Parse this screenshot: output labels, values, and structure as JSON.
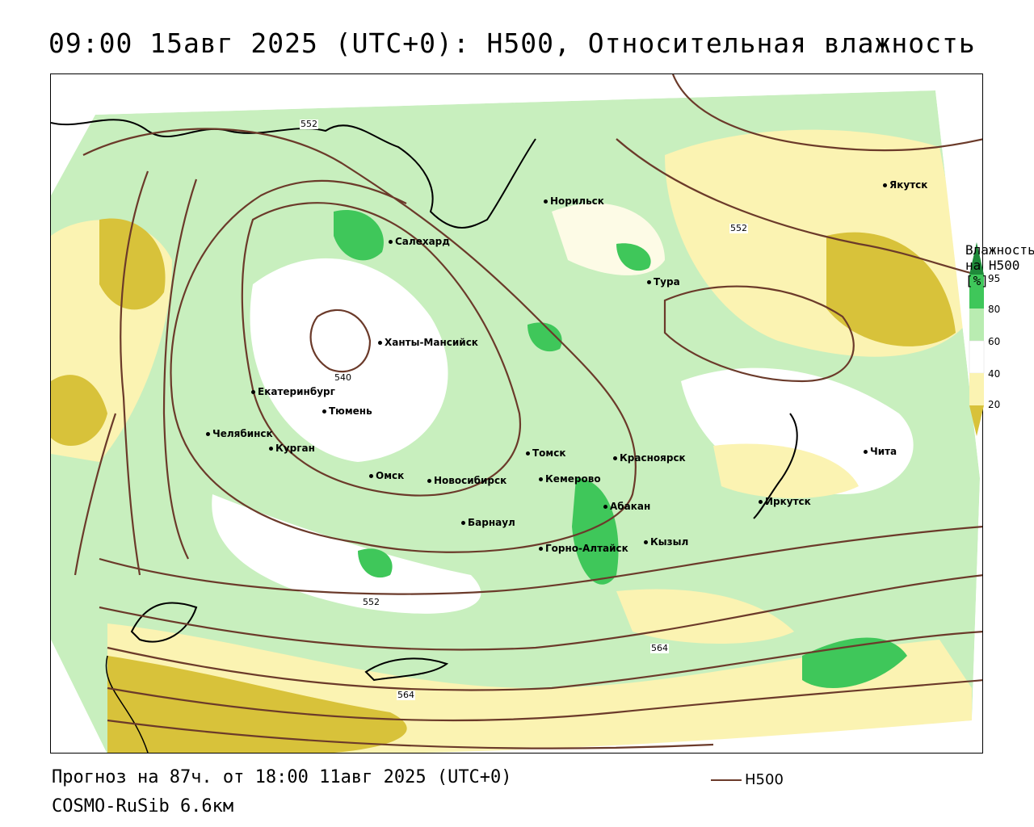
{
  "header": {
    "title": "09:00 15авг 2025 (UTC+0): H500, Относительная влажность"
  },
  "footer": {
    "forecast": "Прогноз на 87ч. от 18:00 11авг 2025 (UTC+0)",
    "model": "COSMO-RuSib 6.6км",
    "line_key": "H500"
  },
  "legend": {
    "title": "Влажность на H500 [%]",
    "ticks": [
      "95",
      "80",
      "60",
      "40",
      "20"
    ],
    "colors": {
      "very_high": "#1f8a3a",
      "high": "#3fc75a",
      "mid_high": "#b9ecb1",
      "mid": "#ffffff",
      "low": "#fbf3b2",
      "very_low": "#d8c23a"
    }
  },
  "contours": {
    "color": "#6b3a2a",
    "labels": [
      "552",
      "540",
      "552",
      "552",
      "564",
      "564"
    ]
  },
  "cities": [
    {
      "name": "Норильск"
    },
    {
      "name": "Якутск"
    },
    {
      "name": "Салехард"
    },
    {
      "name": "Тура"
    },
    {
      "name": "Ханты-Мансийск"
    },
    {
      "name": "Екатеринбург"
    },
    {
      "name": "Тюмень"
    },
    {
      "name": "Челябинск"
    },
    {
      "name": "Курган"
    },
    {
      "name": "Омск"
    },
    {
      "name": "Новосибирск"
    },
    {
      "name": "Томск"
    },
    {
      "name": "Кемерово"
    },
    {
      "name": "Красноярск"
    },
    {
      "name": "Барнаул"
    },
    {
      "name": "Абакан"
    },
    {
      "name": "Горно-Алтайск"
    },
    {
      "name": "Кызыл"
    },
    {
      "name": "Иркутск"
    },
    {
      "name": "Чита"
    }
  ]
}
